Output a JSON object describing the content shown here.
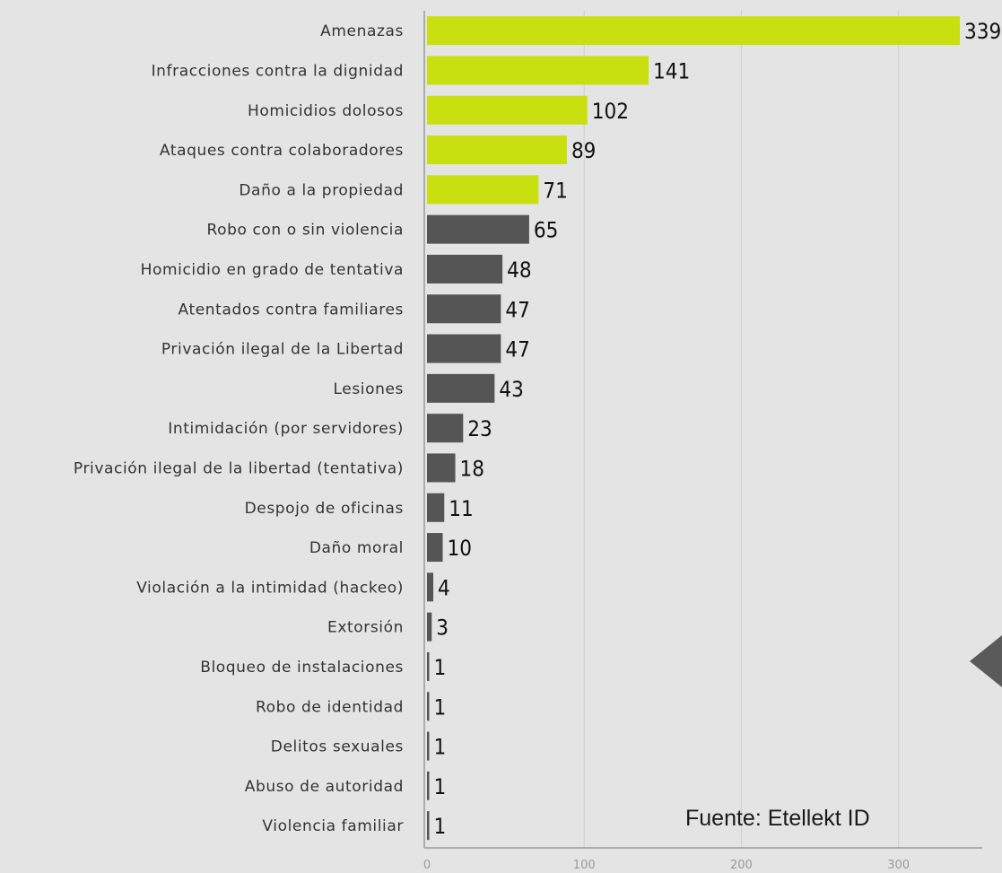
{
  "chart_data": {
    "type": "bar",
    "orientation": "horizontal",
    "categories": [
      "Amenazas",
      "Infracciones contra la dignidad",
      "Homicidios dolosos",
      "Ataques contra colaboradores",
      "Daño a la propiedad",
      "Robo con o sin violencia",
      "Homicidio en grado de tentativa",
      "Atentados contra familiares",
      "Privación ilegal de la Libertad",
      "Lesiones",
      "Intimidación (por servidores)",
      "Privación ilegal de la libertad (tentativa)",
      "Despojo de oficinas",
      "Daño moral",
      "Violación a la intimidad (hackeo)",
      "Extorsión",
      "Bloqueo de instalaciones",
      "Robo de identidad",
      "Delitos sexuales",
      "Abuso de autoridad",
      "Violencia familiar"
    ],
    "values": [
      339,
      141,
      102,
      89,
      71,
      65,
      48,
      47,
      47,
      43,
      23,
      18,
      11,
      10,
      4,
      3,
      1,
      1,
      1,
      1,
      1
    ],
    "highlighted_count": 5,
    "colors": {
      "highlight": "#c8e00f",
      "default": "#555555"
    },
    "xlim": [
      0,
      350
    ],
    "xticks": [
      "0",
      "100",
      "200",
      "300"
    ],
    "grid": true,
    "title": "",
    "xlabel": "",
    "ylabel": ""
  },
  "source": "Fuente:  Etellekt ID"
}
